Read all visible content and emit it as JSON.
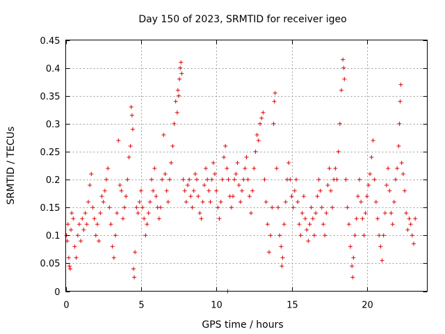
{
  "chart_data": {
    "type": "scatter",
    "title": "Day 150 of 2023, SRMTID for receiver igeo",
    "xlabel": "GPS time / hours",
    "ylabel": "SRMTID / TECUs",
    "xlim": [
      0,
      24
    ],
    "ylim": [
      0,
      0.45
    ],
    "xticks": [
      0,
      5,
      10,
      15,
      20
    ],
    "yticks": [
      0,
      0.05,
      0.1,
      0.15,
      0.2,
      0.25,
      0.3,
      0.35,
      0.4,
      0.45
    ],
    "grid": true,
    "marker": "+",
    "series_color": "#e00000",
    "series": [
      {
        "name": "SRMTID",
        "points": [
          [
            0.05,
            0.1
          ],
          [
            0.1,
            0.09
          ],
          [
            0.15,
            0.12
          ],
          [
            0.2,
            0.06
          ],
          [
            0.25,
            0.045
          ],
          [
            0.3,
            0.04
          ],
          [
            0.35,
            0.11
          ],
          [
            0.4,
            0.14
          ],
          [
            0.5,
            0.13
          ],
          [
            0.6,
            0.08
          ],
          [
            0.7,
            0.06
          ],
          [
            0.8,
            0.1
          ],
          [
            0.9,
            0.12
          ],
          [
            1.0,
            0.09
          ],
          [
            1.1,
            0.13
          ],
          [
            1.2,
            0.11
          ],
          [
            1.3,
            0.14
          ],
          [
            1.4,
            0.12
          ],
          [
            1.5,
            0.16
          ],
          [
            1.6,
            0.19
          ],
          [
            1.7,
            0.21
          ],
          [
            1.8,
            0.15
          ],
          [
            1.9,
            0.13
          ],
          [
            2.0,
            0.1
          ],
          [
            2.1,
            0.12
          ],
          [
            2.2,
            0.09
          ],
          [
            2.3,
            0.14
          ],
          [
            2.4,
            0.17
          ],
          [
            2.5,
            0.16
          ],
          [
            2.6,
            0.18
          ],
          [
            2.7,
            0.2
          ],
          [
            2.8,
            0.22
          ],
          [
            2.9,
            0.15
          ],
          [
            3.0,
            0.12
          ],
          [
            3.1,
            0.08
          ],
          [
            3.2,
            0.06
          ],
          [
            3.3,
            0.1
          ],
          [
            3.4,
            0.14
          ],
          [
            3.5,
            0.27
          ],
          [
            3.6,
            0.19
          ],
          [
            3.7,
            0.18
          ],
          [
            3.8,
            0.13
          ],
          [
            3.9,
            0.15
          ],
          [
            4.0,
            0.17
          ],
          [
            4.1,
            0.2
          ],
          [
            4.2,
            0.24
          ],
          [
            4.3,
            0.26
          ],
          [
            4.35,
            0.33
          ],
          [
            4.4,
            0.315
          ],
          [
            4.45,
            0.29
          ],
          [
            4.5,
            0.04
          ],
          [
            4.55,
            0.025
          ],
          [
            4.6,
            0.07
          ],
          [
            4.7,
            0.15
          ],
          [
            4.8,
            0.14
          ],
          [
            4.9,
            0.16
          ],
          [
            5.0,
            0.18
          ],
          [
            5.1,
            0.15
          ],
          [
            5.2,
            0.13
          ],
          [
            5.3,
            0.1
          ],
          [
            5.4,
            0.12
          ],
          [
            5.5,
            0.14
          ],
          [
            5.6,
            0.16
          ],
          [
            5.7,
            0.2
          ],
          [
            5.8,
            0.18
          ],
          [
            5.9,
            0.22
          ],
          [
            6.0,
            0.17
          ],
          [
            6.1,
            0.15
          ],
          [
            6.2,
            0.13
          ],
          [
            6.3,
            0.15
          ],
          [
            6.4,
            0.2
          ],
          [
            6.5,
            0.28
          ],
          [
            6.6,
            0.21
          ],
          [
            6.7,
            0.18
          ],
          [
            6.8,
            0.16
          ],
          [
            6.9,
            0.2
          ],
          [
            7.0,
            0.23
          ],
          [
            7.1,
            0.26
          ],
          [
            7.2,
            0.3
          ],
          [
            7.3,
            0.34
          ],
          [
            7.4,
            0.32
          ],
          [
            7.45,
            0.36
          ],
          [
            7.5,
            0.35
          ],
          [
            7.55,
            0.38
          ],
          [
            7.6,
            0.4
          ],
          [
            7.65,
            0.41
          ],
          [
            7.7,
            0.39
          ],
          [
            7.8,
            0.2
          ],
          [
            7.9,
            0.18
          ],
          [
            8.0,
            0.16
          ],
          [
            8.1,
            0.19
          ],
          [
            8.2,
            0.2
          ],
          [
            8.3,
            0.17
          ],
          [
            8.4,
            0.15
          ],
          [
            8.5,
            0.18
          ],
          [
            8.6,
            0.21
          ],
          [
            8.7,
            0.2
          ],
          [
            8.8,
            0.17
          ],
          [
            8.9,
            0.14
          ],
          [
            9.0,
            0.13
          ],
          [
            9.1,
            0.16
          ],
          [
            9.2,
            0.19
          ],
          [
            9.3,
            0.22
          ],
          [
            9.4,
            0.2
          ],
          [
            9.5,
            0.18
          ],
          [
            9.6,
            0.16
          ],
          [
            9.7,
            0.2
          ],
          [
            9.8,
            0.23
          ],
          [
            9.9,
            0.21
          ],
          [
            10.0,
            0.18
          ],
          [
            10.1,
            0.15
          ],
          [
            10.2,
            0.13
          ],
          [
            10.3,
            0.16
          ],
          [
            10.4,
            0.2
          ],
          [
            10.5,
            0.24
          ],
          [
            10.6,
            0.26
          ],
          [
            10.7,
            0.22
          ],
          [
            10.8,
            0.2
          ],
          [
            10.9,
            0.17
          ],
          [
            11.0,
            0.15
          ],
          [
            11.1,
            0.17
          ],
          [
            11.2,
            0.2
          ],
          [
            11.3,
            0.21
          ],
          [
            11.4,
            0.23
          ],
          [
            11.5,
            0.19
          ],
          [
            11.6,
            0.16
          ],
          [
            11.7,
            0.18
          ],
          [
            11.8,
            0.2
          ],
          [
            11.9,
            0.22
          ],
          [
            12.0,
            0.24
          ],
          [
            12.1,
            0.2
          ],
          [
            12.2,
            0.17
          ],
          [
            12.3,
            0.14
          ],
          [
            12.4,
            0.18
          ],
          [
            12.5,
            0.22
          ],
          [
            12.6,
            0.25
          ],
          [
            12.7,
            0.28
          ],
          [
            12.8,
            0.27
          ],
          [
            12.9,
            0.3
          ],
          [
            13.0,
            0.31
          ],
          [
            13.1,
            0.32
          ],
          [
            13.2,
            0.2
          ],
          [
            13.3,
            0.16
          ],
          [
            13.4,
            0.12
          ],
          [
            13.5,
            0.07
          ],
          [
            13.6,
            0.1
          ],
          [
            13.7,
            0.15
          ],
          [
            13.8,
            0.3
          ],
          [
            13.85,
            0.34
          ],
          [
            13.9,
            0.355
          ],
          [
            14.0,
            0.22
          ],
          [
            14.1,
            0.15
          ],
          [
            14.2,
            0.1
          ],
          [
            14.3,
            0.08
          ],
          [
            14.35,
            0.045
          ],
          [
            14.4,
            0.06
          ],
          [
            14.5,
            0.12
          ],
          [
            14.6,
            0.16
          ],
          [
            14.7,
            0.2
          ],
          [
            14.8,
            0.23
          ],
          [
            14.9,
            0.2
          ],
          [
            15.0,
            0.17
          ],
          [
            15.1,
            0.15
          ],
          [
            15.2,
            0.18
          ],
          [
            15.3,
            0.2
          ],
          [
            15.4,
            0.16
          ],
          [
            15.5,
            0.12
          ],
          [
            15.6,
            0.1
          ],
          [
            15.7,
            0.14
          ],
          [
            15.8,
            0.17
          ],
          [
            15.9,
            0.13
          ],
          [
            16.0,
            0.11
          ],
          [
            16.1,
            0.09
          ],
          [
            16.2,
            0.12
          ],
          [
            16.3,
            0.15
          ],
          [
            16.4,
            0.13
          ],
          [
            16.5,
            0.1
          ],
          [
            16.6,
            0.14
          ],
          [
            16.7,
            0.17
          ],
          [
            16.8,
            0.2
          ],
          [
            16.9,
            0.18
          ],
          [
            17.0,
            0.15
          ],
          [
            17.1,
            0.12
          ],
          [
            17.2,
            0.1
          ],
          [
            17.3,
            0.14
          ],
          [
            17.4,
            0.19
          ],
          [
            17.5,
            0.22
          ],
          [
            17.6,
            0.18
          ],
          [
            17.7,
            0.15
          ],
          [
            17.8,
            0.2
          ],
          [
            17.9,
            0.22
          ],
          [
            18.0,
            0.2
          ],
          [
            18.1,
            0.25
          ],
          [
            18.2,
            0.3
          ],
          [
            18.3,
            0.36
          ],
          [
            18.4,
            0.415
          ],
          [
            18.45,
            0.4
          ],
          [
            18.5,
            0.38
          ],
          [
            18.6,
            0.2
          ],
          [
            18.7,
            0.15
          ],
          [
            18.8,
            0.12
          ],
          [
            18.9,
            0.08
          ],
          [
            19.0,
            0.045
          ],
          [
            19.05,
            0.025
          ],
          [
            19.1,
            0.06
          ],
          [
            19.2,
            0.1
          ],
          [
            19.3,
            0.13
          ],
          [
            19.4,
            0.17
          ],
          [
            19.5,
            0.2
          ],
          [
            19.6,
            0.16
          ],
          [
            19.7,
            0.13
          ],
          [
            19.8,
            0.1
          ],
          [
            19.9,
            0.14
          ],
          [
            20.0,
            0.17
          ],
          [
            20.1,
            0.19
          ],
          [
            20.2,
            0.21
          ],
          [
            20.3,
            0.24
          ],
          [
            20.4,
            0.27
          ],
          [
            20.5,
            0.2
          ],
          [
            20.6,
            0.16
          ],
          [
            20.7,
            0.13
          ],
          [
            20.8,
            0.1
          ],
          [
            20.9,
            0.08
          ],
          [
            21.0,
            0.055
          ],
          [
            21.1,
            0.1
          ],
          [
            21.2,
            0.14
          ],
          [
            21.3,
            0.19
          ],
          [
            21.4,
            0.22
          ],
          [
            21.5,
            0.18
          ],
          [
            21.6,
            0.14
          ],
          [
            21.7,
            0.12
          ],
          [
            21.8,
            0.16
          ],
          [
            21.9,
            0.2
          ],
          [
            22.0,
            0.22
          ],
          [
            22.1,
            0.26
          ],
          [
            22.15,
            0.3
          ],
          [
            22.2,
            0.34
          ],
          [
            22.25,
            0.37
          ],
          [
            22.3,
            0.23
          ],
          [
            22.4,
            0.21
          ],
          [
            22.5,
            0.18
          ],
          [
            22.6,
            0.14
          ],
          [
            22.7,
            0.11
          ],
          [
            22.8,
            0.13
          ],
          [
            22.9,
            0.12
          ],
          [
            23.0,
            0.1
          ],
          [
            23.1,
            0.085
          ],
          [
            23.2,
            0.13
          ],
          [
            10.75,
            0.0
          ]
        ]
      }
    ]
  }
}
